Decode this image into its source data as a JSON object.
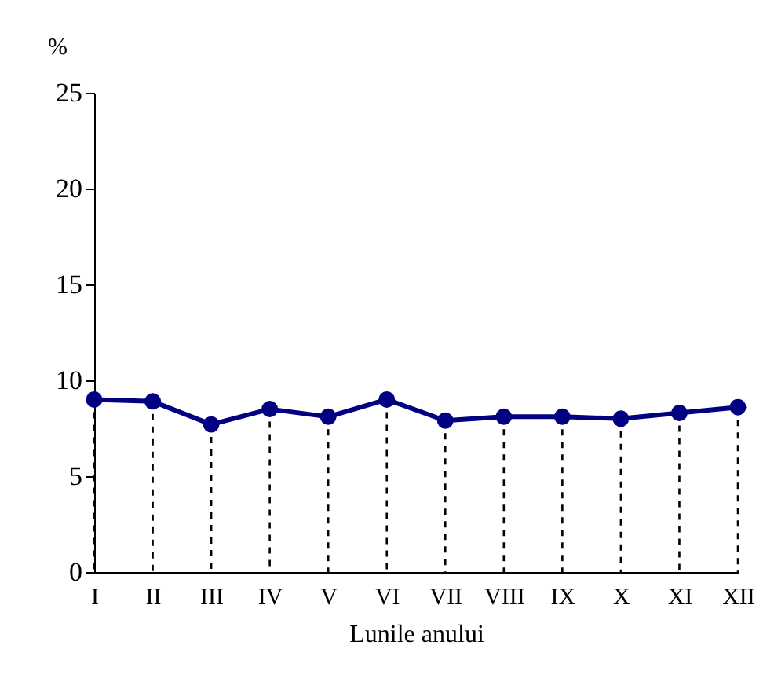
{
  "chart_data": {
    "type": "line",
    "xlabel": "Lunile anului",
    "ylabel": "%",
    "categories": [
      "I",
      "II",
      "III",
      "IV",
      "V",
      "VI",
      "VII",
      "VIII",
      "IX",
      "X",
      "XI",
      "XII"
    ],
    "series": [
      {
        "color": "#000080",
        "values": [
          9.0,
          8.9,
          7.7,
          8.5,
          8.1,
          9.0,
          7.9,
          8.1,
          8.1,
          8.0,
          8.3,
          8.6
        ]
      }
    ],
    "ylim": [
      0,
      25
    ],
    "yticks": [
      0,
      5,
      10,
      15,
      20,
      25
    ],
    "grid": false,
    "legend": false,
    "marker": "circle",
    "line_style": "solid"
  }
}
